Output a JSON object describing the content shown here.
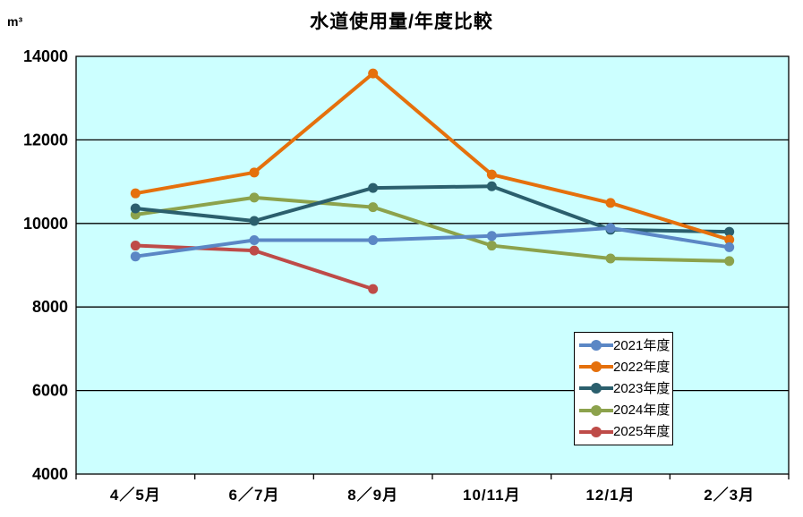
{
  "chart_data": {
    "type": "line",
    "title": "水道使用量/年度比較",
    "unit": "m³",
    "categories": [
      "4／5月",
      "6／7月",
      "8／9月",
      "10/11月",
      "12/1月",
      "2／3月"
    ],
    "series": [
      {
        "name": "2025年度",
        "color": "#BE4B48",
        "values": [
          9470,
          9350,
          8430,
          null,
          null,
          null
        ]
      },
      {
        "name": "2024年度",
        "color": "#8CA24C",
        "values": [
          10210,
          10620,
          10390,
          9470,
          9160,
          9100
        ]
      },
      {
        "name": "2023年度",
        "color": "#2B5F6D",
        "values": [
          10360,
          10060,
          10850,
          10890,
          9850,
          9800
        ]
      },
      {
        "name": "2022年度",
        "color": "#E5700C",
        "values": [
          10720,
          11220,
          13590,
          11170,
          10490,
          9610
        ]
      },
      {
        "name": "2021年度",
        "color": "#5B87C5",
        "values": [
          9210,
          9600,
          9600,
          9700,
          9890,
          9430
        ]
      }
    ],
    "ylim": [
      4000,
      14000
    ],
    "ytick_step": 2000,
    "yticks": [
      4000,
      6000,
      8000,
      10000,
      12000,
      14000
    ],
    "grid": true,
    "plot_bg": "#CCFFFF",
    "gridline_color": "#000000",
    "legend_position": "inside-lower-right"
  }
}
